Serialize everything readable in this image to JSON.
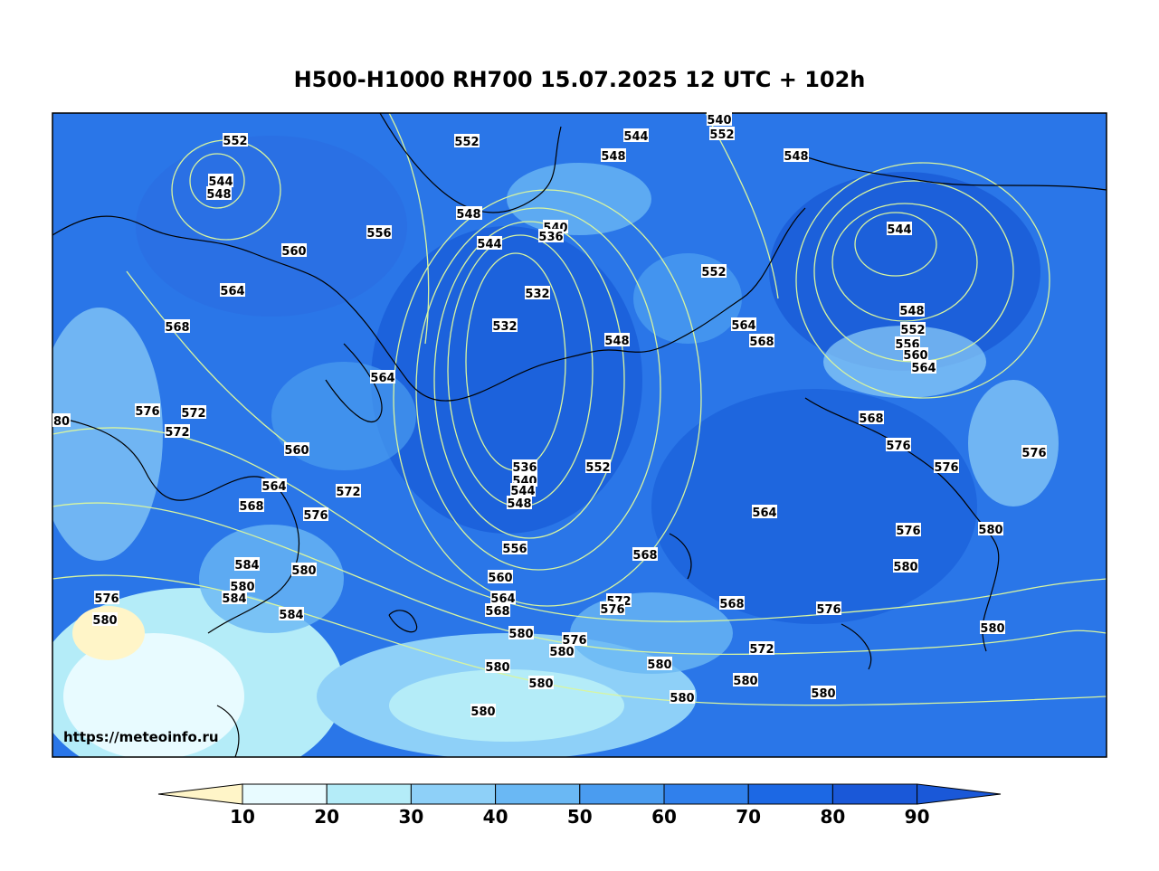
{
  "title": "H500-H1000 RH700 15.07.2025 12 UTC + 102h",
  "credit": "https://meteoinfo.ru",
  "colors": {
    "rh_scale": [
      "#fff5c8",
      "#e8fbff",
      "#b4ecf8",
      "#8ed0f8",
      "#6ab8f4",
      "#4a9cf0",
      "#3080ec",
      "#1c68e4",
      "#1a58d8"
    ],
    "contour": "#d8f5a0",
    "coast": "#000000"
  },
  "colorbar": {
    "ticks": [
      "10",
      "20",
      "30",
      "40",
      "50",
      "60",
      "70",
      "80",
      "90"
    ]
  },
  "contour_labels": [
    "552",
    "544",
    "548",
    "552",
    "548",
    "552",
    "540",
    "544",
    "548",
    "548",
    "556",
    "560",
    "548",
    "544",
    "540",
    "536",
    "544",
    "564",
    "532",
    "552",
    "568",
    "532",
    "564",
    "548",
    "568",
    "548",
    "552",
    "556",
    "560",
    "564",
    "564",
    "568",
    "80",
    "576",
    "572",
    "572",
    "560",
    "552",
    "576",
    "536",
    "540",
    "544",
    "548",
    "564",
    "572",
    "568",
    "576",
    "564",
    "576",
    "576",
    "556",
    "568",
    "576",
    "580",
    "580",
    "560",
    "564",
    "568",
    "572",
    "576",
    "568",
    "576",
    "584",
    "580",
    "584",
    "580",
    "576",
    "580",
    "584",
    "580",
    "576",
    "572",
    "580",
    "580",
    "580",
    "580",
    "580",
    "580",
    "580",
    "580",
    "580"
  ]
}
